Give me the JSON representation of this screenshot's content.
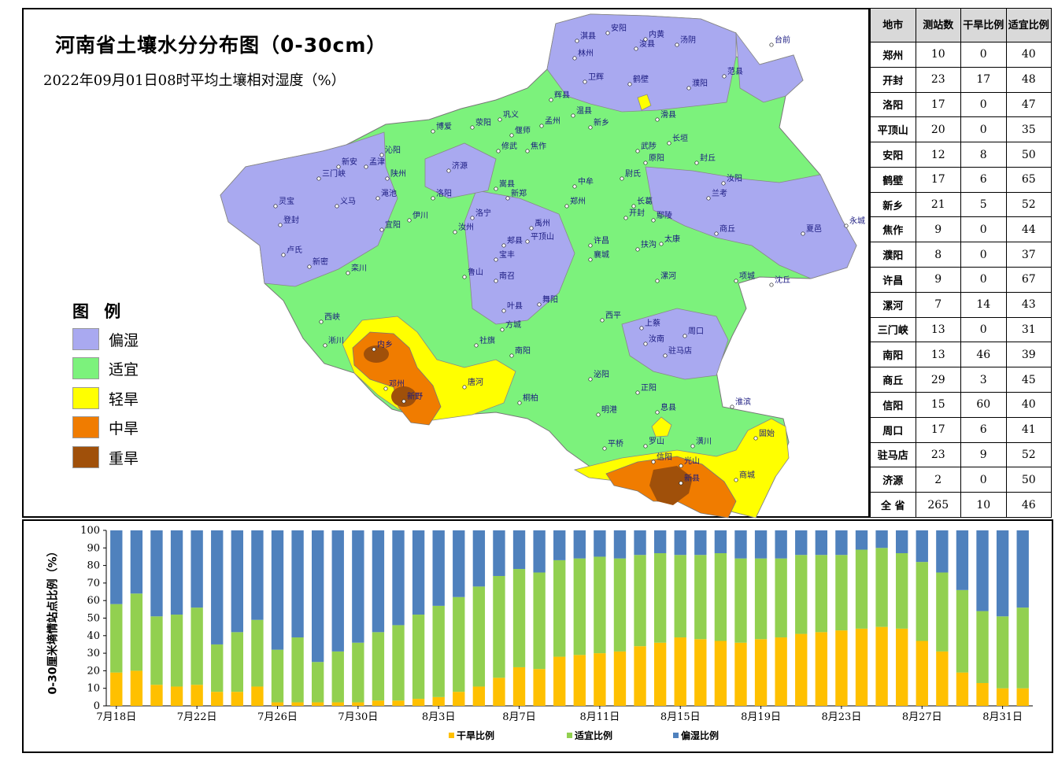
{
  "map": {
    "title": "河南省土壤水分分布图（0-30cm）",
    "subtitle": "2022年09月01日08时平均土壤相对湿度（%）",
    "legend_title": "图  例",
    "legend": [
      {
        "label": "偏湿",
        "color": "#a9a9f0"
      },
      {
        "label": "适宜",
        "color": "#7cf27c"
      },
      {
        "label": "轻旱",
        "color": "#ffff00"
      },
      {
        "label": "中旱",
        "color": "#f07c00"
      },
      {
        "label": "重旱",
        "color": "#a0500a"
      }
    ],
    "place_labels": [
      "林州",
      "安阳",
      "鹤壁",
      "濮阳",
      "新乡",
      "焦作",
      "济源",
      "郑州",
      "开封",
      "商丘",
      "洛阳",
      "三门峡",
      "灵宝",
      "卢氏",
      "栾川",
      "西峡",
      "淅川",
      "内乡",
      "邓州",
      "新野",
      "唐河",
      "南阳",
      "平顶山",
      "许昌",
      "漯河",
      "周口",
      "驻马店",
      "信阳",
      "固始",
      "商城",
      "新县",
      "光山",
      "息县",
      "泌阳",
      "桐柏",
      "永城",
      "夏邑",
      "兰考",
      "台前",
      "范县",
      "伊川",
      "汝州",
      "禹州",
      "鄢陵",
      "扶沟",
      "太康",
      "沈丘",
      "项城",
      "淮滨",
      "潢川",
      "罗山",
      "平桥",
      "明港",
      "正阳",
      "汝南",
      "上蔡",
      "西平",
      "舞阳",
      "叶县",
      "方城",
      "社旗",
      "南召",
      "鲁山",
      "宝丰",
      "郏县",
      "襄城",
      "长葛",
      "尉氏",
      "中牟",
      "新郑",
      "荥阳",
      "巩义",
      "偃师",
      "孟州",
      "温县",
      "武陟",
      "原阳",
      "封丘",
      "长垣",
      "滑县",
      "浚县",
      "内黄",
      "汤阴",
      "淇县",
      "卫辉",
      "辉县",
      "修武",
      "博爱",
      "沁阳",
      "孟津",
      "新安",
      "渑池",
      "义马",
      "陕州",
      "宜阳",
      "洛宁",
      "嵩县",
      "汝阳",
      "登封",
      "新密"
    ]
  },
  "table": {
    "headers": [
      "地市",
      "测站数",
      "干旱比例",
      "适宜比例"
    ],
    "rows": [
      [
        "郑州",
        "10",
        "0",
        "40"
      ],
      [
        "开封",
        "23",
        "17",
        "48"
      ],
      [
        "洛阳",
        "17",
        "0",
        "47"
      ],
      [
        "平顶山",
        "20",
        "0",
        "35"
      ],
      [
        "安阳",
        "12",
        "8",
        "50"
      ],
      [
        "鹤壁",
        "17",
        "6",
        "65"
      ],
      [
        "新乡",
        "21",
        "5",
        "52"
      ],
      [
        "焦作",
        "9",
        "0",
        "44"
      ],
      [
        "濮阳",
        "8",
        "0",
        "37"
      ],
      [
        "许昌",
        "9",
        "0",
        "67"
      ],
      [
        "漯河",
        "7",
        "14",
        "43"
      ],
      [
        "三门峡",
        "13",
        "0",
        "31"
      ],
      [
        "南阳",
        "13",
        "46",
        "39"
      ],
      [
        "商丘",
        "29",
        "3",
        "45"
      ],
      [
        "信阳",
        "15",
        "60",
        "40"
      ],
      [
        "周口",
        "17",
        "6",
        "41"
      ],
      [
        "驻马店",
        "23",
        "9",
        "52"
      ],
      [
        "济源",
        "2",
        "0",
        "50"
      ],
      [
        "全  省",
        "265",
        "10",
        "46"
      ]
    ]
  },
  "chart_data": {
    "type": "bar",
    "stacked": true,
    "ylabel": "0-30厘米墒情站点比例（%）",
    "ylim": [
      0,
      100
    ],
    "yticks": [
      0,
      10,
      20,
      30,
      40,
      50,
      60,
      70,
      80,
      90,
      100
    ],
    "x_tick_labels": [
      "7月18日",
      "7月22日",
      "7月26日",
      "7月30日",
      "8月3日",
      "8月7日",
      "8月11日",
      "8月15日",
      "8月19日",
      "8月23日",
      "8月27日",
      "8月31日"
    ],
    "series": [
      {
        "name": "干旱比例",
        "color": "#ffc000",
        "values": [
          19,
          20,
          12,
          11,
          12,
          8,
          8,
          11,
          2,
          2,
          2,
          2,
          2,
          3,
          3,
          4,
          5,
          8,
          11,
          16,
          22,
          21,
          28,
          29,
          30,
          31,
          34,
          36,
          39,
          38,
          37,
          36,
          38,
          39,
          41,
          42,
          43,
          44,
          45,
          44,
          37,
          31,
          19,
          13,
          10,
          10
        ]
      },
      {
        "name": "适宜比例",
        "color": "#92d050",
        "values": [
          39,
          44,
          39,
          41,
          44,
          27,
          34,
          38,
          30,
          37,
          23,
          29,
          34,
          39,
          43,
          48,
          52,
          54,
          57,
          58,
          56,
          55,
          55,
          55,
          55,
          53,
          52,
          51,
          47,
          48,
          50,
          48,
          46,
          45,
          45,
          44,
          43,
          45,
          45,
          43,
          45,
          45,
          47,
          41,
          41,
          46
        ]
      },
      {
        "name": "偏湿比例",
        "color": "#4f81bd",
        "values": [
          42,
          36,
          49,
          48,
          44,
          65,
          58,
          51,
          68,
          61,
          75,
          69,
          64,
          58,
          54,
          48,
          43,
          38,
          32,
          26,
          22,
          24,
          17,
          16,
          15,
          16,
          14,
          13,
          14,
          14,
          13,
          16,
          16,
          16,
          14,
          14,
          14,
          11,
          10,
          13,
          18,
          24,
          34,
          46,
          49,
          44
        ]
      }
    ]
  }
}
